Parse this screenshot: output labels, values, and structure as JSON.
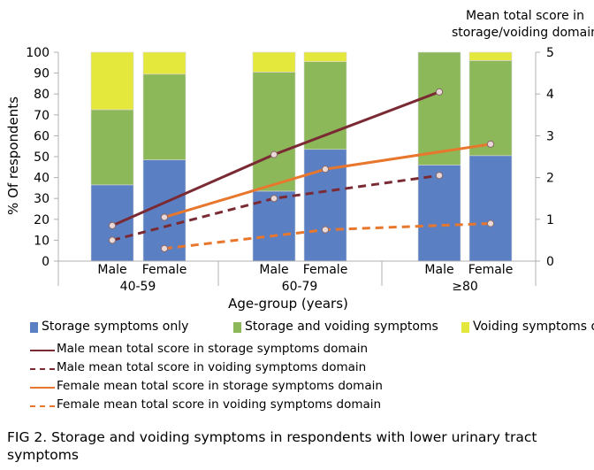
{
  "chart_data": {
    "type": "bar",
    "stacked": true,
    "categories": [
      "Male 40-59",
      "Female 40-59",
      "Male 60-79",
      "Female 60-79",
      "Male ≥80",
      "Female ≥80"
    ],
    "bar_labels": [
      "Male",
      "Female",
      "Male",
      "Female",
      "Male",
      "Female"
    ],
    "groups": [
      "40-59",
      "60-79",
      "≥80"
    ],
    "xlabel": "Age-group (years)",
    "ylabel": "% Of respondents",
    "ylabel_right": "Mean total score in storage/voiding domain",
    "ylim": [
      0,
      100
    ],
    "yticks": [
      0,
      10,
      20,
      30,
      40,
      50,
      60,
      70,
      80,
      90,
      100
    ],
    "ylim_right": [
      0,
      5
    ],
    "yticks_right": [
      0,
      1,
      2,
      3,
      4,
      5
    ],
    "series": [
      {
        "name": "Storage symptoms only",
        "color": "#5b7fc3",
        "values": [
          36.5,
          48.5,
          33.5,
          53.5,
          46,
          50.5
        ]
      },
      {
        "name": "Storage and voiding symptoms",
        "color": "#8cb85a",
        "values": [
          36,
          41,
          57,
          42,
          54,
          45.5
        ]
      },
      {
        "name": "Voiding symptoms only",
        "color": "#e5e83c",
        "values": [
          27.5,
          10.5,
          9.5,
          4.5,
          0,
          4
        ]
      }
    ],
    "lines": [
      {
        "name": "Male mean total score in storage symptoms domain",
        "color": "#7a2a33",
        "dashed": false,
        "x": [
          0,
          2,
          4
        ],
        "values": [
          0.85,
          2.55,
          4.05
        ]
      },
      {
        "name": "Male mean total score in voiding symptoms domain",
        "color": "#7a2a33",
        "dashed": true,
        "x": [
          0,
          2,
          4
        ],
        "values": [
          0.5,
          1.5,
          2.05
        ]
      },
      {
        "name": "Female mean total score in storage symptoms domain",
        "color": "#e8772e",
        "dashed": false,
        "x": [
          1,
          3,
          5
        ],
        "values": [
          1.05,
          2.2,
          2.8
        ]
      },
      {
        "name": "Female mean total score in voiding symptoms domain",
        "color": "#e8772e",
        "dashed": true,
        "x": [
          1,
          3,
          5
        ],
        "values": [
          0.3,
          0.75,
          0.9
        ]
      }
    ]
  },
  "caption": "FIG 2.  Storage and voiding symptoms in respondents with lower urinary tract symptoms"
}
